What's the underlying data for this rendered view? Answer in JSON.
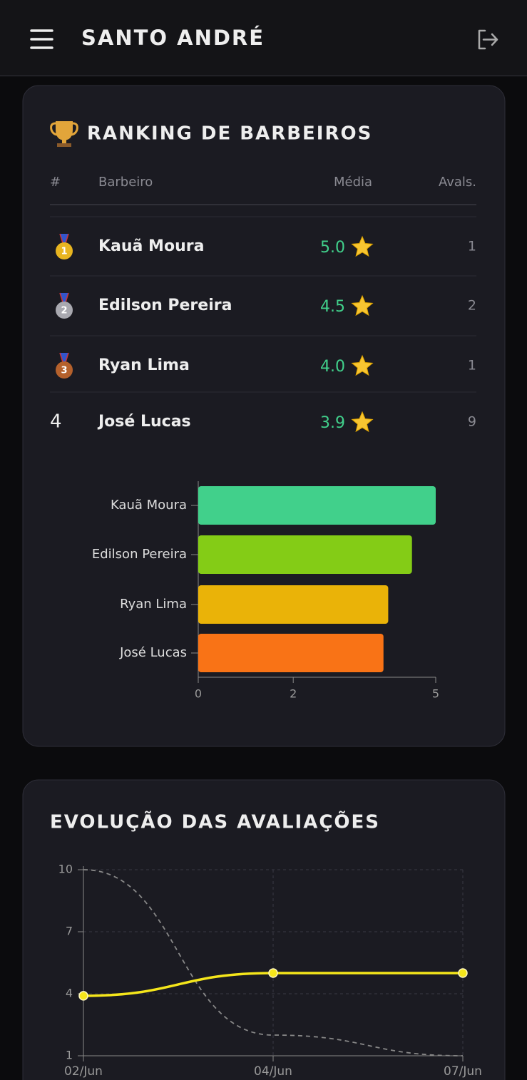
{
  "header": {
    "title": "SANTO ANDRÉ"
  },
  "ranking": {
    "title": "RANKING DE BARBEIROS",
    "columns": [
      "#",
      "Barbeiro",
      "Média",
      "Avals."
    ],
    "rows": [
      {
        "rank": "1",
        "name": "Kauã Moura",
        "media": "5.0",
        "avals": "1"
      },
      {
        "rank": "2",
        "name": "Edilson Pereira",
        "media": "4.5",
        "avals": "2"
      },
      {
        "rank": "3",
        "name": "Ryan Lima",
        "media": "4.0",
        "avals": "1"
      },
      {
        "rank": "4",
        "name": "José Lucas",
        "media": "3.9",
        "avals": "9"
      }
    ]
  },
  "evolution": {
    "title": "EVOLUÇÃO DAS AVALIAÇÕES"
  },
  "chart_data": [
    {
      "type": "hbar",
      "categories": [
        "Kauã Moura",
        "Edilson Pereira",
        "Ryan Lima",
        "José Lucas"
      ],
      "values": [
        5.0,
        4.5,
        4.0,
        3.9
      ],
      "colors": [
        "#41d08b",
        "#84cc16",
        "#eab308",
        "#f97316"
      ],
      "xlim": [
        0,
        5
      ],
      "xticks": [
        0,
        2,
        5
      ]
    },
    {
      "type": "line",
      "categories": [
        "02/Jun",
        "04/Jun",
        "07/Jun"
      ],
      "series": [
        {
          "color": "#f5e61b",
          "values": [
            3.9,
            5,
            5
          ],
          "dashed": false,
          "markers": true
        },
        {
          "color": "#888888",
          "values": [
            10,
            2,
            1
          ],
          "dashed": true,
          "markers": false
        }
      ],
      "ylim": [
        1,
        10
      ],
      "yticks": [
        1,
        4,
        7,
        10
      ],
      "grid": true
    }
  ]
}
